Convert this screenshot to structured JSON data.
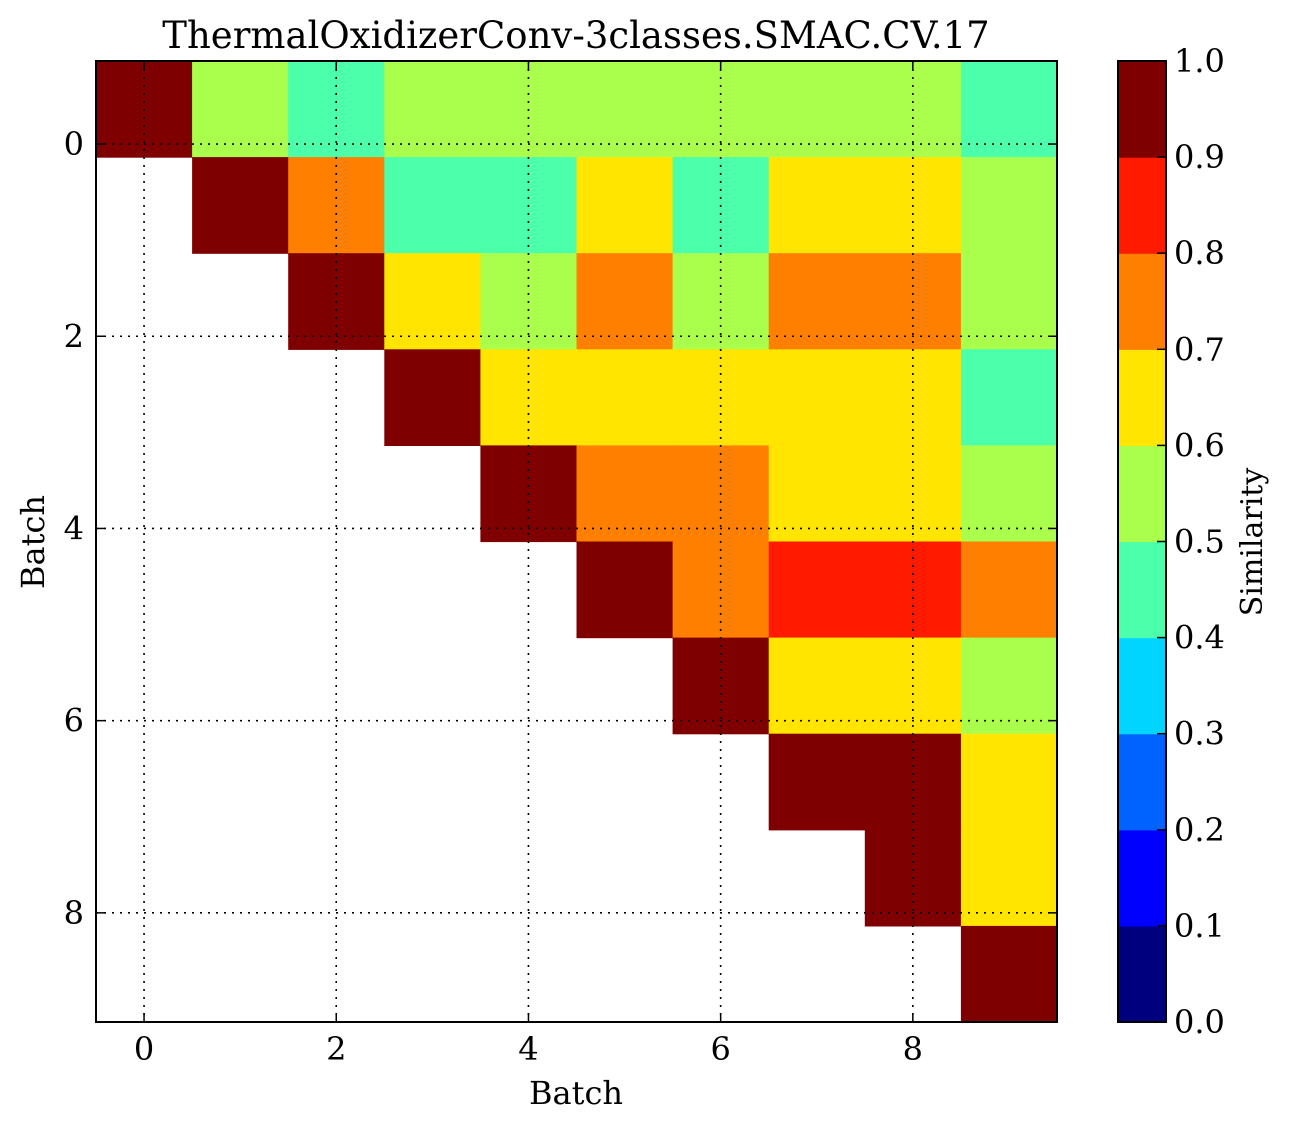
{
  "chart_data": {
    "type": "heatmap",
    "title": "ThermalOxidizerConv-3classes.SMAC.CV.17",
    "xlabel": "Batch",
    "ylabel": "Batch",
    "x_ticks": [
      "0",
      "2",
      "4",
      "6",
      "8"
    ],
    "y_ticks": [
      "0",
      "2",
      "4",
      "6",
      "8"
    ],
    "grid": true,
    "colorbar": {
      "label": "Similarity",
      "range": [
        0.0,
        1.0
      ],
      "ticks": [
        "0.0",
        "0.1",
        "0.2",
        "0.3",
        "0.4",
        "0.5",
        "0.6",
        "0.7",
        "0.8",
        "0.9",
        "1.0"
      ],
      "colors": [
        "#00007f",
        "#0000ff",
        "#0063ff",
        "#00d5ff",
        "#4cffaa",
        "#aaff4c",
        "#ffe500",
        "#ff7f00",
        "#ff1a00",
        "#7f0000"
      ]
    },
    "matrix": [
      [
        1.0,
        0.55,
        0.45,
        0.55,
        0.55,
        0.55,
        0.55,
        0.55,
        0.55,
        0.45
      ],
      [
        null,
        1.0,
        0.75,
        0.45,
        0.45,
        0.65,
        0.45,
        0.65,
        0.65,
        0.55
      ],
      [
        null,
        null,
        1.0,
        0.65,
        0.55,
        0.75,
        0.55,
        0.75,
        0.75,
        0.55
      ],
      [
        null,
        null,
        null,
        1.0,
        0.65,
        0.65,
        0.65,
        0.65,
        0.65,
        0.45
      ],
      [
        null,
        null,
        null,
        null,
        1.0,
        0.75,
        0.75,
        0.65,
        0.65,
        0.55
      ],
      [
        null,
        null,
        null,
        null,
        null,
        1.0,
        0.75,
        0.85,
        0.85,
        0.75
      ],
      [
        null,
        null,
        null,
        null,
        null,
        null,
        1.0,
        0.65,
        0.65,
        0.55
      ],
      [
        null,
        null,
        null,
        null,
        null,
        null,
        null,
        1.0,
        1.0,
        0.65
      ],
      [
        null,
        null,
        null,
        null,
        null,
        null,
        null,
        null,
        1.0,
        0.65
      ],
      [
        null,
        null,
        null,
        null,
        null,
        null,
        null,
        null,
        null,
        1.0
      ]
    ]
  }
}
